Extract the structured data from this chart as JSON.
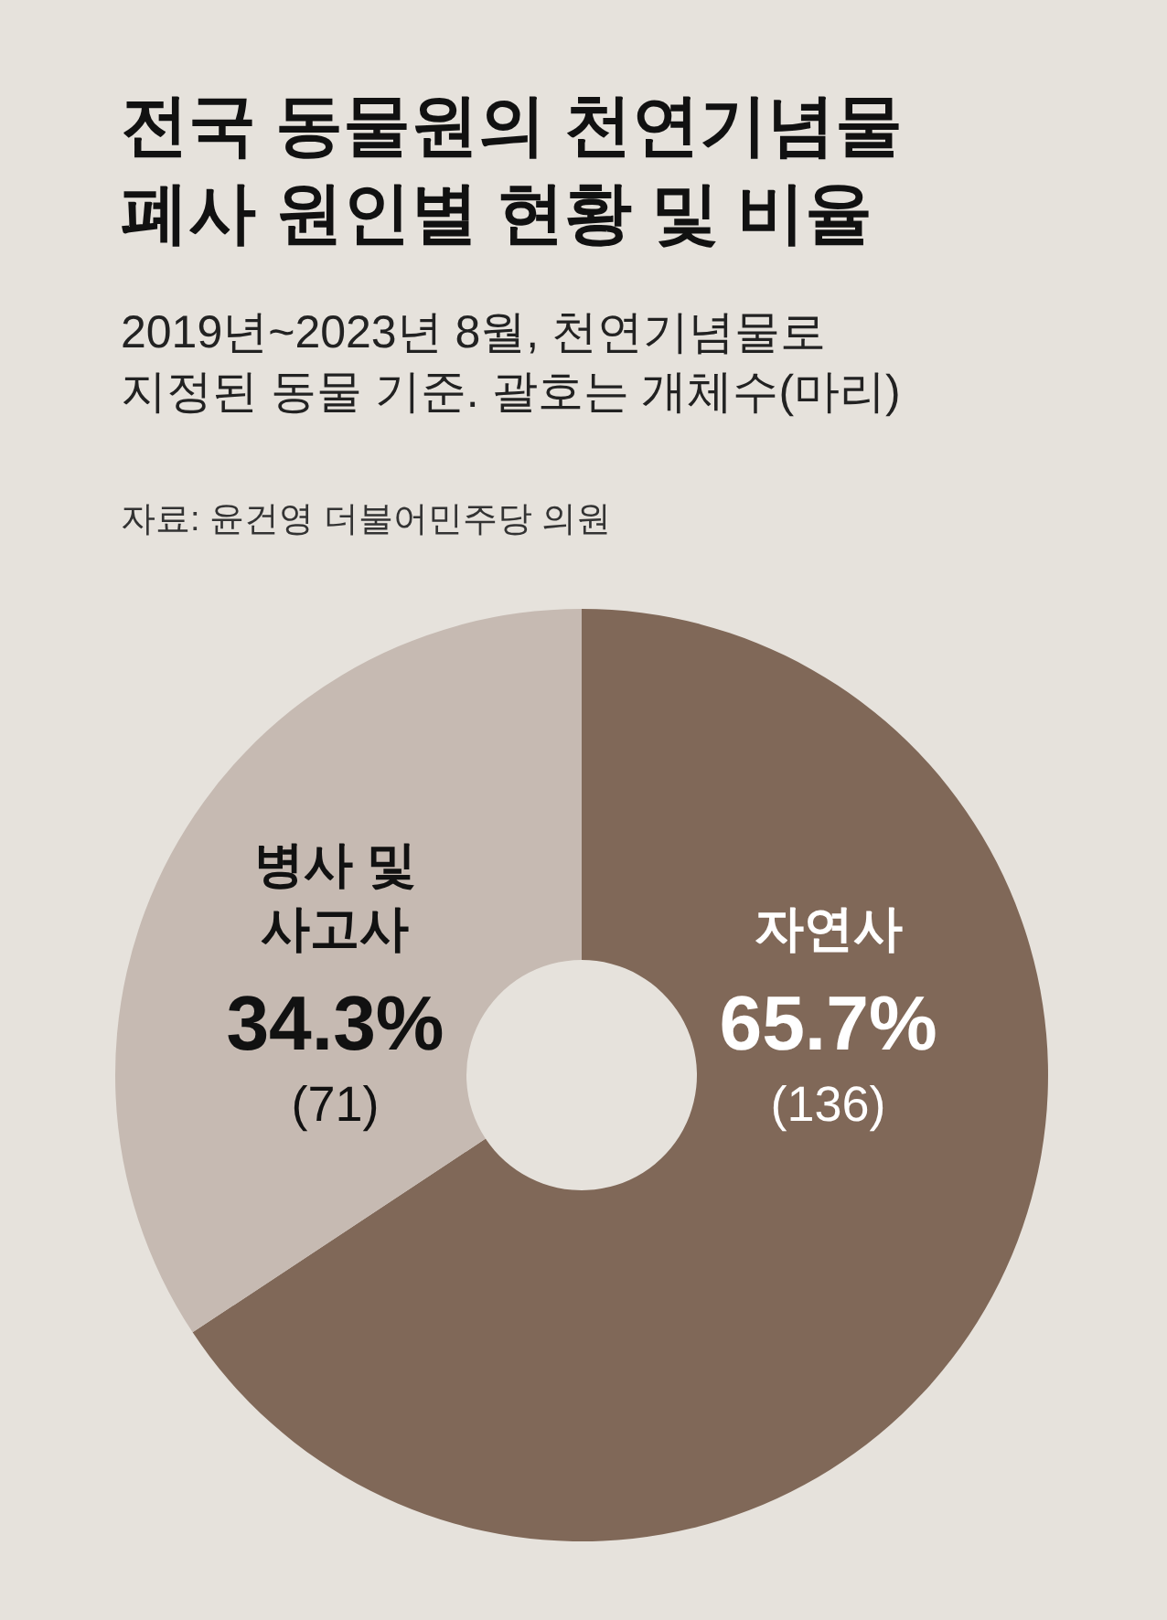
{
  "chart_data": {
    "type": "donut",
    "title": "전국 동물원의 천연기념물\n폐사 원인별 현황 및 비율",
    "subtitle": "2019년~2023년 8월, 천연기념물로\n지정된 동물 기준. 괄호는 개체수(마리)",
    "annotations": [
      "자료: 윤건영 더불어민주당 의원",
      "(136)",
      "(71)"
    ],
    "categories": [
      "자연사",
      "병사 및\n사고사"
    ],
    "values": [
      65.7,
      34.3
    ],
    "value_labels": [
      "65.7%",
      "34.3%"
    ],
    "colors": [
      "#806858",
      "#c6bab2"
    ]
  }
}
